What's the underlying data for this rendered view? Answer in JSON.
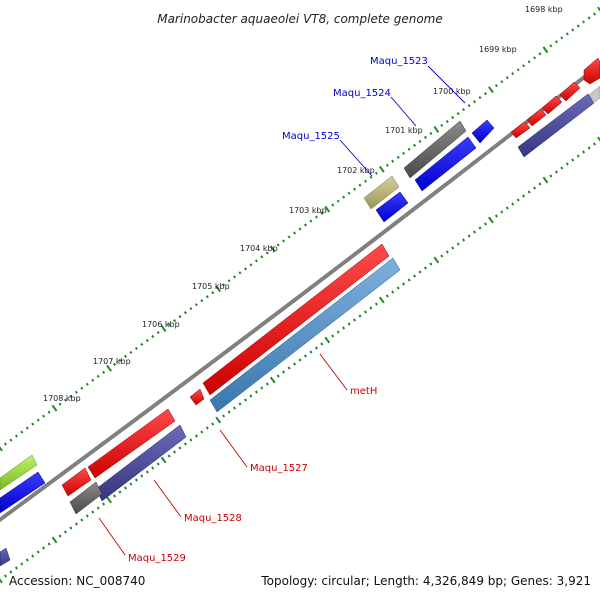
{
  "title": "Marinobacter aquaeolei VT8, complete genome",
  "footer": {
    "accession": "Accession: NC_008740",
    "summary": "Topology: circular; Length: 4,326,849 bp; Genes: 3,921"
  },
  "kbp_labels": [
    "1698 kbp",
    "1699 kbp",
    "1700 kbp",
    "1701 kbp",
    "1702 kbp",
    "1703 kbp",
    "1704 kbp",
    "1705 kbp",
    "1706 kbp",
    "1707 kbp",
    "1708 kbp"
  ],
  "gene_labels": [
    {
      "text": "Maqu_1523",
      "color": "#0000cc"
    },
    {
      "text": "Maqu_1524",
      "color": "#0000cc"
    },
    {
      "text": "Maqu_1525",
      "color": "#0000cc"
    },
    {
      "text": "metH",
      "color": "#cc0000"
    },
    {
      "text": "Maqu_1527",
      "color": "#cc0000"
    },
    {
      "text": "Maqu_1528",
      "color": "#cc0000"
    },
    {
      "text": "Maqu_1529",
      "color": "#cc0000"
    }
  ],
  "colors": {
    "backbone": "#808080",
    "forward_gene": "#ff0000",
    "reverse_gene": "#0000ff",
    "cog_dark_blue": "#4a4a9c",
    "cog_steel_blue": "#4f8fc4",
    "cog_gray": "#666666",
    "cog_khaki": "#b8b57a",
    "cog_green": "#99dd33",
    "tick": "#228822"
  }
}
